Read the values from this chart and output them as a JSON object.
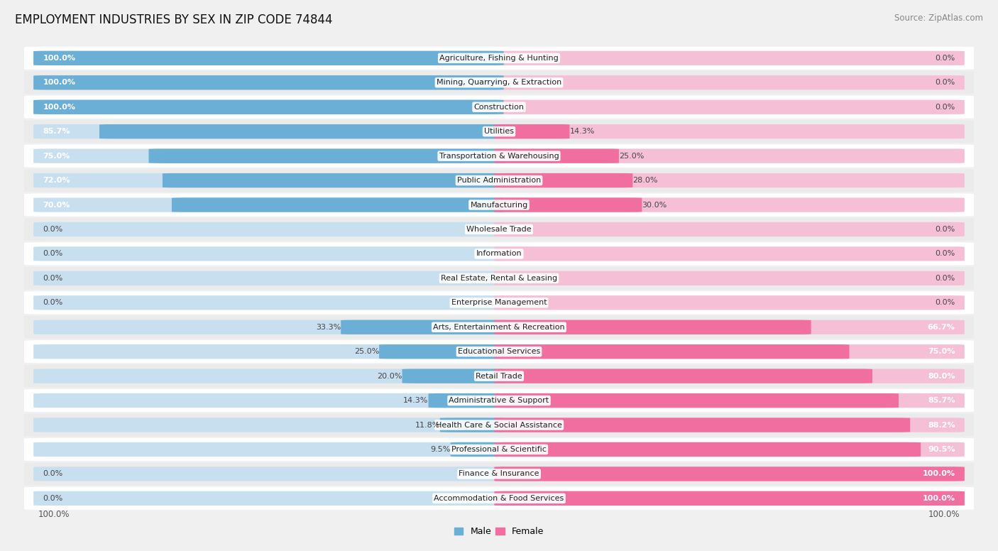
{
  "title": "EMPLOYMENT INDUSTRIES BY SEX IN ZIP CODE 74844",
  "source": "Source: ZipAtlas.com",
  "categories": [
    "Agriculture, Fishing & Hunting",
    "Mining, Quarrying, & Extraction",
    "Construction",
    "Utilities",
    "Transportation & Warehousing",
    "Public Administration",
    "Manufacturing",
    "Wholesale Trade",
    "Information",
    "Real Estate, Rental & Leasing",
    "Enterprise Management",
    "Arts, Entertainment & Recreation",
    "Educational Services",
    "Retail Trade",
    "Administrative & Support",
    "Health Care & Social Assistance",
    "Professional & Scientific",
    "Finance & Insurance",
    "Accommodation & Food Services"
  ],
  "male": [
    100.0,
    100.0,
    100.0,
    85.7,
    75.0,
    72.0,
    70.0,
    0.0,
    0.0,
    0.0,
    0.0,
    33.3,
    25.0,
    20.0,
    14.3,
    11.8,
    9.5,
    0.0,
    0.0
  ],
  "female": [
    0.0,
    0.0,
    0.0,
    14.3,
    25.0,
    28.0,
    30.0,
    0.0,
    0.0,
    0.0,
    0.0,
    66.7,
    75.0,
    80.0,
    85.7,
    88.2,
    90.5,
    100.0,
    100.0
  ],
  "male_color": "#6baed6",
  "female_color": "#f06fa0",
  "bg_color": "#f0f0f0",
  "row_bg_white": "#ffffff",
  "row_bg_gray": "#ebebeb",
  "bar_stub_color": "#c8dff0",
  "bar_stub_pink": "#f5c0d5",
  "title_fontsize": 12,
  "source_fontsize": 8.5,
  "cat_fontsize": 8,
  "val_fontsize": 8,
  "legend_male": "Male",
  "legend_female": "Female"
}
